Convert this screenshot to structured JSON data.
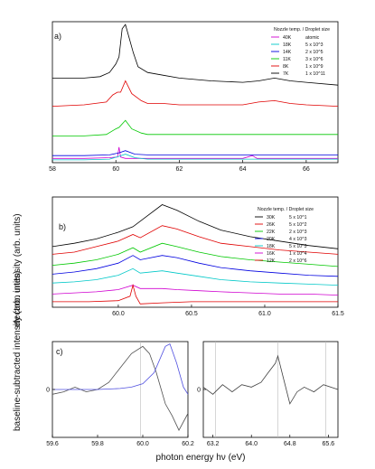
{
  "figure": {
    "ylabel_top": "electron intensity (arb. units)",
    "ylabel_bottom": "baseline-subtracted intensity (arb. units)",
    "xlabel": "photon energy hν (eV)"
  },
  "chart_data": [
    {
      "panel": "a)",
      "type": "line",
      "xlim": [
        58,
        67
      ],
      "xticks": [
        "58",
        "60",
        "62",
        "64",
        "66"
      ],
      "legend_title": "Nozzle temp. / Droplet size",
      "legend_position": "top-right",
      "series": [
        {
          "name": "40K",
          "size": "atomic",
          "color": "#d000d0",
          "x": [
            58,
            59,
            59.8,
            60.05,
            60.1,
            60.15,
            60.3,
            61,
            62,
            63,
            64,
            64.3,
            64.45,
            65,
            66,
            67
          ],
          "y": [
            0.03,
            0.03,
            0.035,
            0.04,
            0.11,
            0.04,
            0.03,
            0.03,
            0.03,
            0.03,
            0.03,
            0.05,
            0.03,
            0.03,
            0.03,
            0.03
          ]
        },
        {
          "name": "18K",
          "size": "5 x 10^3",
          "color": "#00c8c8",
          "x": [
            58,
            59,
            59.8,
            60.1,
            60.3,
            60.6,
            61,
            62,
            63,
            64,
            64.5,
            65,
            66,
            67
          ],
          "y": [
            0.02,
            0.02,
            0.025,
            0.045,
            0.06,
            0.035,
            0.025,
            0.025,
            0.025,
            0.025,
            0.025,
            0.025,
            0.025,
            0.025
          ]
        },
        {
          "name": "14K",
          "size": "2 x 10^5",
          "color": "#0000e0",
          "x": [
            58,
            59,
            59.8,
            60.1,
            60.3,
            60.6,
            61,
            62,
            63,
            64,
            65,
            66,
            67
          ],
          "y": [
            0.05,
            0.05,
            0.055,
            0.07,
            0.085,
            0.06,
            0.055,
            0.055,
            0.055,
            0.055,
            0.055,
            0.055,
            0.055
          ]
        },
        {
          "name": "11K",
          "size": "3 x 10^6",
          "color": "#00c800",
          "x": [
            58,
            59,
            59.7,
            60.0,
            60.1,
            60.3,
            60.5,
            60.8,
            61,
            62,
            63,
            64,
            65,
            66,
            67
          ],
          "y": [
            0.19,
            0.19,
            0.2,
            0.24,
            0.25,
            0.3,
            0.24,
            0.21,
            0.2,
            0.2,
            0.2,
            0.2,
            0.2,
            0.2,
            0.2
          ]
        },
        {
          "name": "8K",
          "size": "1 x 10^9",
          "color": "#e00000",
          "x": [
            58,
            59,
            59.7,
            59.9,
            60.05,
            60.15,
            60.3,
            60.5,
            60.8,
            61,
            61.5,
            62,
            63,
            64,
            64.5,
            65,
            65.5,
            66,
            67
          ],
          "y": [
            0.4,
            0.41,
            0.43,
            0.48,
            0.5,
            0.5,
            0.58,
            0.49,
            0.44,
            0.42,
            0.42,
            0.41,
            0.41,
            0.41,
            0.43,
            0.44,
            0.42,
            0.41,
            0.4
          ]
        },
        {
          "name": "7K",
          "size": "1 x 10^11",
          "color": "#000000",
          "x": [
            58,
            58.5,
            59,
            59.5,
            59.8,
            60.0,
            60.1,
            60.2,
            60.3,
            60.4,
            60.55,
            60.7,
            61,
            61.5,
            62,
            63,
            64,
            64.5,
            65,
            65.5,
            66,
            67
          ],
          "y": [
            0.6,
            0.6,
            0.6,
            0.61,
            0.64,
            0.7,
            0.75,
            0.95,
            0.98,
            0.9,
            0.78,
            0.68,
            0.64,
            0.62,
            0.6,
            0.58,
            0.57,
            0.58,
            0.6,
            0.58,
            0.57,
            0.55
          ]
        }
      ]
    },
    {
      "panel": "b)",
      "type": "line",
      "xlim": [
        59.55,
        61.5
      ],
      "xticks": [
        "60.0",
        "60.5",
        "61.0",
        "61.5"
      ],
      "legend_title": "Nozzle temp. / Droplet size",
      "legend_position": "top-right",
      "series": [
        {
          "name": "30K",
          "size": "5 x 10^1",
          "color": "#000000",
          "x": [
            59.55,
            59.7,
            59.85,
            60.0,
            60.1,
            60.2,
            60.3,
            60.4,
            60.55,
            60.7,
            60.9,
            61.1,
            61.3,
            61.5
          ],
          "y": [
            0.55,
            0.58,
            0.62,
            0.68,
            0.73,
            0.83,
            0.93,
            0.88,
            0.78,
            0.7,
            0.64,
            0.6,
            0.56,
            0.53
          ]
        },
        {
          "name": "26K",
          "size": "5 x 10^2",
          "color": "#e00000",
          "x": [
            59.55,
            59.7,
            59.85,
            60.0,
            60.1,
            60.15,
            60.3,
            60.4,
            60.55,
            60.7,
            60.9,
            61.1,
            61.3,
            61.5
          ],
          "y": [
            0.48,
            0.5,
            0.55,
            0.6,
            0.66,
            0.63,
            0.74,
            0.71,
            0.64,
            0.58,
            0.55,
            0.52,
            0.5,
            0.48
          ]
        },
        {
          "name": "22K",
          "size": "2 x 10^3",
          "color": "#00c800",
          "x": [
            59.55,
            59.7,
            59.85,
            60.0,
            60.1,
            60.15,
            60.3,
            60.4,
            60.55,
            60.7,
            60.9,
            61.1,
            61.3,
            61.5
          ],
          "y": [
            0.38,
            0.4,
            0.43,
            0.48,
            0.54,
            0.5,
            0.58,
            0.55,
            0.5,
            0.46,
            0.43,
            0.41,
            0.39,
            0.37
          ]
        },
        {
          "name": "20K",
          "size": "4 x 10^3",
          "color": "#0000e0",
          "x": [
            59.55,
            59.7,
            59.85,
            60.0,
            60.1,
            60.15,
            60.3,
            60.4,
            60.55,
            60.7,
            60.9,
            61.1,
            61.3,
            61.5
          ],
          "y": [
            0.3,
            0.32,
            0.35,
            0.4,
            0.47,
            0.43,
            0.47,
            0.45,
            0.4,
            0.36,
            0.33,
            0.31,
            0.29,
            0.28
          ]
        },
        {
          "name": "18K",
          "size": "5 x 10^3",
          "color": "#00c8c8",
          "x": [
            59.55,
            59.7,
            59.85,
            60.0,
            60.1,
            60.15,
            60.3,
            60.4,
            60.55,
            60.7,
            60.9,
            61.1,
            61.3,
            61.5
          ],
          "y": [
            0.22,
            0.23,
            0.25,
            0.29,
            0.35,
            0.31,
            0.33,
            0.31,
            0.28,
            0.25,
            0.23,
            0.22,
            0.21,
            0.2
          ]
        },
        {
          "name": "16K",
          "size": "1 x 10^4",
          "color": "#d000d0",
          "x": [
            59.55,
            59.7,
            59.85,
            60.0,
            60.1,
            60.15,
            60.3,
            60.4,
            60.55,
            60.7,
            60.9,
            61.1,
            61.3,
            61.5
          ],
          "y": [
            0.12,
            0.13,
            0.14,
            0.16,
            0.2,
            0.17,
            0.17,
            0.16,
            0.15,
            0.14,
            0.13,
            0.12,
            0.12,
            0.11
          ]
        },
        {
          "name": "12K",
          "size": "2 x 10^6",
          "color": "#e00000",
          "x": [
            59.55,
            59.8,
            60.0,
            60.08,
            60.1,
            60.12,
            60.15,
            60.3,
            60.5,
            61.0,
            61.5
          ],
          "y": [
            0.05,
            0.05,
            0.06,
            0.1,
            0.2,
            0.1,
            0.03,
            0.04,
            0.05,
            0.05,
            0.05
          ]
        }
      ]
    },
    {
      "panel": "c)",
      "type": "line",
      "xlim": [
        59.6,
        60.2
      ],
      "ylim": [
        -1,
        1
      ],
      "xticks": [
        "59.6",
        "59.8",
        "60.0",
        "60.2"
      ],
      "yticks": [
        "0"
      ],
      "vlines": [
        59.99
      ],
      "series": [
        {
          "color": "#505050",
          "x": [
            59.6,
            59.65,
            59.7,
            59.75,
            59.8,
            59.85,
            59.9,
            59.95,
            60.0,
            60.03,
            60.06,
            60.1,
            60.13,
            60.16,
            60.2
          ],
          "y": [
            -0.1,
            -0.05,
            0.05,
            -0.05,
            0.0,
            0.15,
            0.45,
            0.75,
            0.9,
            0.75,
            0.35,
            -0.3,
            -0.55,
            -0.85,
            -0.5
          ]
        },
        {
          "color": "#5050e0",
          "x": [
            59.6,
            59.7,
            59.8,
            59.9,
            59.95,
            60.0,
            60.05,
            60.1,
            60.12,
            60.15,
            60.18,
            60.2
          ],
          "y": [
            0.0,
            0.0,
            0.0,
            0.02,
            0.05,
            0.12,
            0.35,
            0.9,
            0.95,
            0.55,
            0.05,
            -0.1
          ]
        }
      ]
    },
    {
      "panel": "",
      "type": "line",
      "xlim": [
        63.0,
        65.8
      ],
      "ylim": [
        -1,
        1
      ],
      "xticks": [
        "63.2",
        "64.0",
        "64.8",
        "65.6"
      ],
      "yticks": [
        "0"
      ],
      "vlines": [
        63.25,
        64.55,
        65.55
      ],
      "series": [
        {
          "color": "#404040",
          "x": [
            63.0,
            63.2,
            63.4,
            63.6,
            63.8,
            64.0,
            64.2,
            64.35,
            64.5,
            64.55,
            64.65,
            64.8,
            64.95,
            65.1,
            65.3,
            65.5,
            65.8
          ],
          "y": [
            0.05,
            -0.1,
            0.1,
            -0.05,
            0.1,
            0.05,
            0.15,
            0.35,
            0.55,
            0.7,
            0.3,
            -0.3,
            -0.05,
            0.05,
            -0.05,
            0.1,
            0.0
          ]
        }
      ]
    }
  ]
}
